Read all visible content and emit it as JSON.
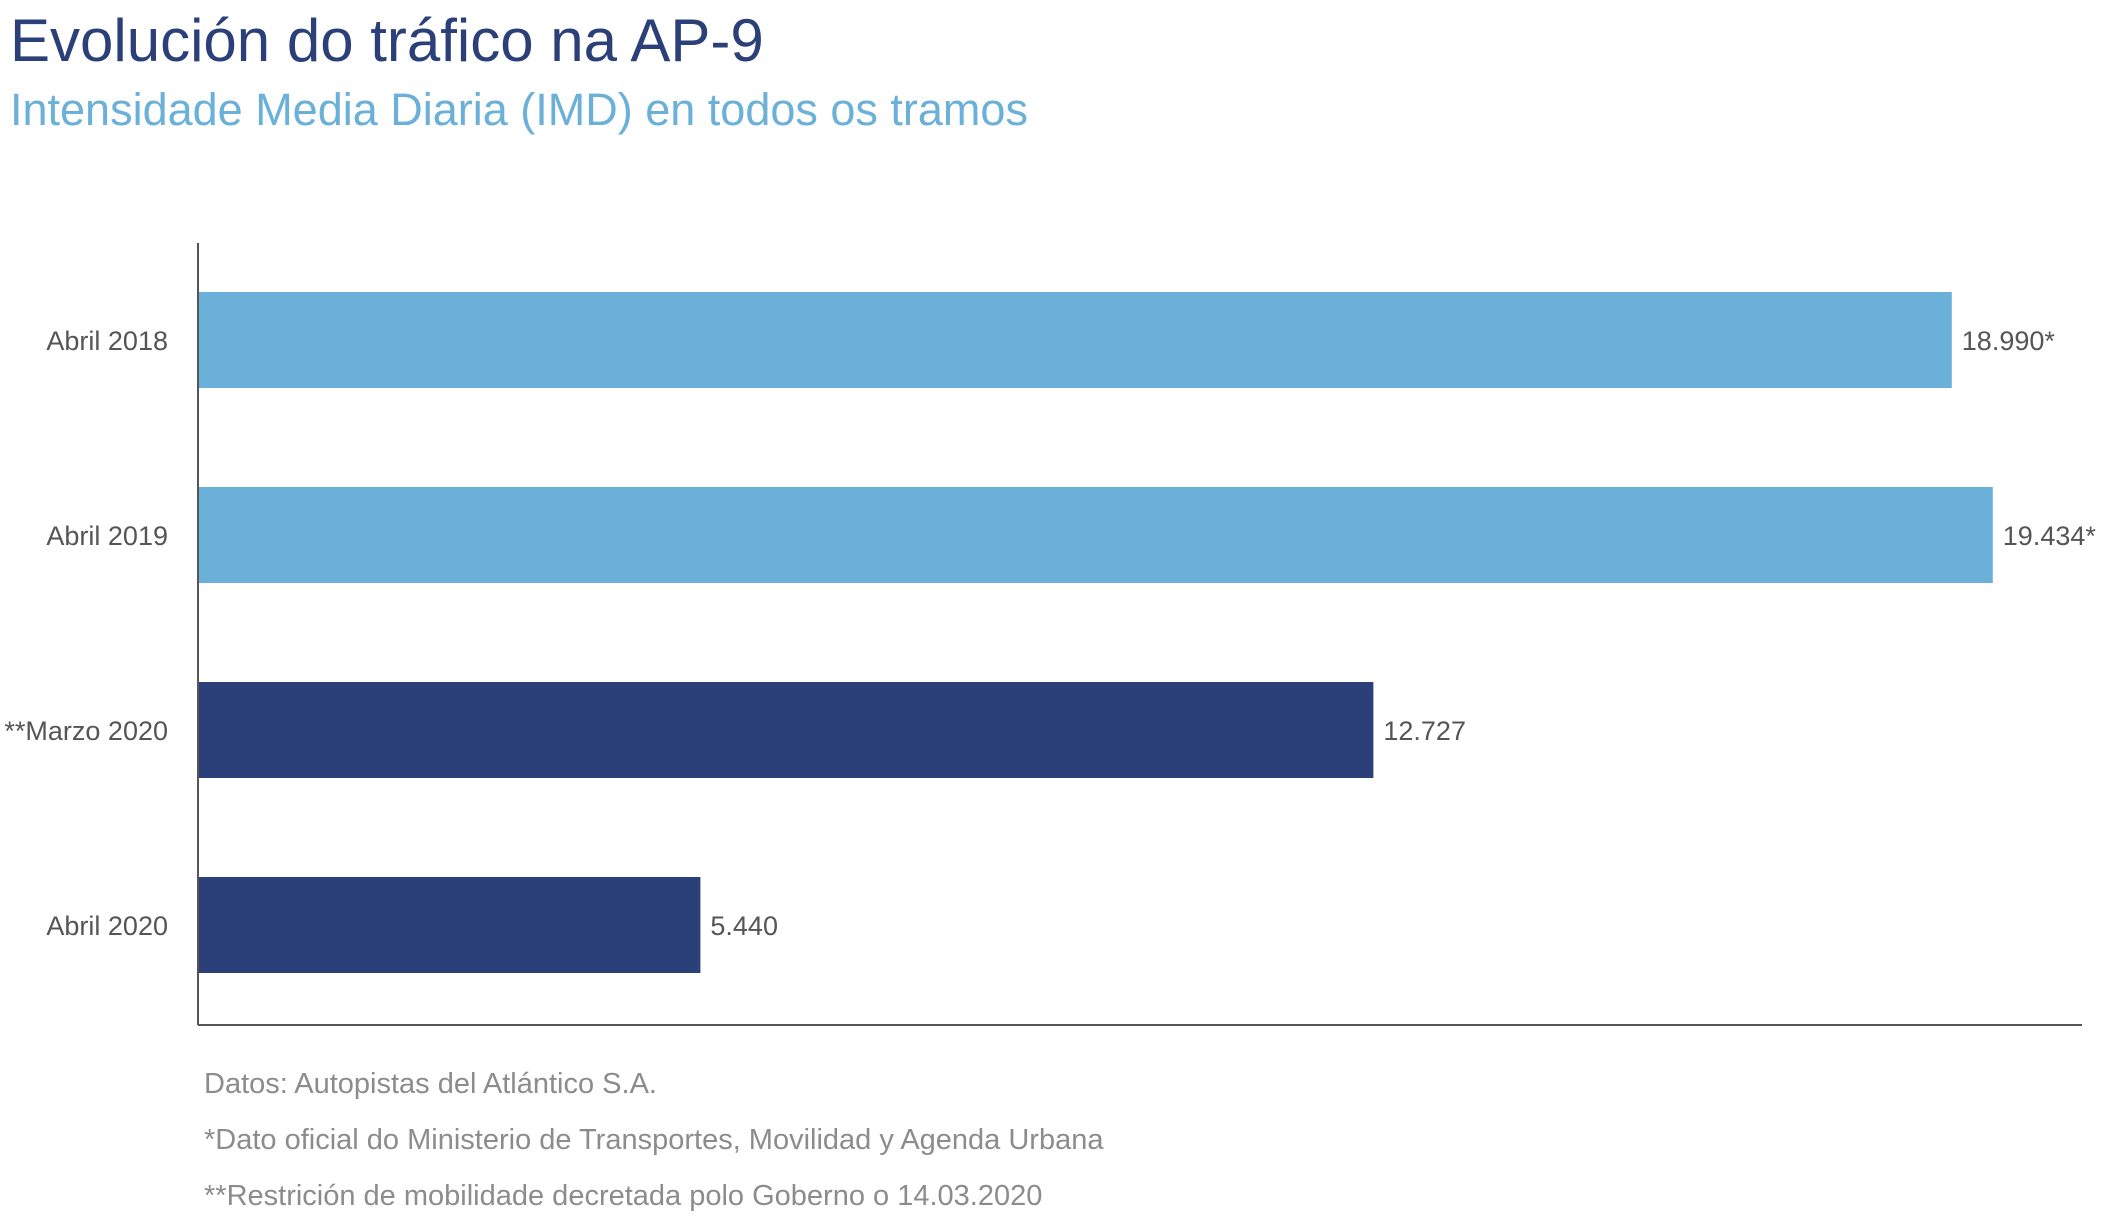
{
  "header": {
    "title": "Evolución do tráfico na AP-9",
    "subtitle": "Intensidade Media Diaria (IMD) en todos os tramos"
  },
  "chart_data": {
    "type": "bar",
    "orientation": "horizontal",
    "categories": [
      "Abril 2018",
      "Abril 2019",
      "**Marzo 2020",
      "Abril 2020"
    ],
    "values": [
      18990,
      19434,
      12727,
      5440
    ],
    "value_labels": [
      "18.990*",
      "19.434*",
      "12.727",
      "5.440"
    ],
    "bar_colors": [
      "#6ab0d9",
      "#6ab0d9",
      "#2b3f78",
      "#2b3f78"
    ],
    "xlim": [
      0,
      20400
    ],
    "grid": false,
    "legend": "none"
  },
  "footnotes": {
    "source": "Datos: Autopistas del Atlántico S.A.",
    "note1": "*Dato oficial do Ministerio de Transportes, Movilidad y Agenda Urbana",
    "note2": "**Restrición de mobilidade decretada polo Goberno o 14.03.2020"
  },
  "colors": {
    "light_bar": "#6ab0d9",
    "dark_bar": "#2b3f78",
    "axis": "#555555",
    "label": "#555555"
  }
}
